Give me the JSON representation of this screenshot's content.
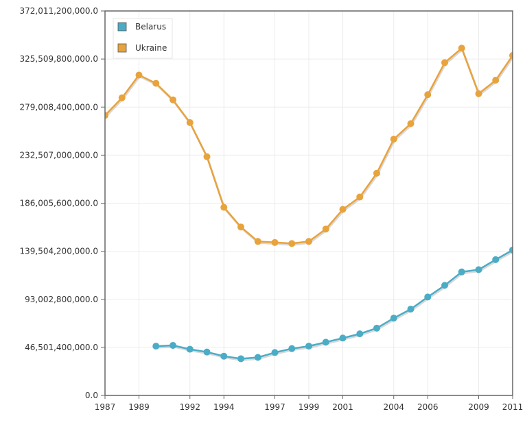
{
  "chart_data": {
    "type": "line",
    "title": "",
    "xlabel": "",
    "ylabel": "",
    "x": [
      1987,
      1988,
      1989,
      1990,
      1991,
      1992,
      1993,
      1994,
      1995,
      1996,
      1997,
      1998,
      1999,
      2000,
      2001,
      2002,
      2003,
      2004,
      2005,
      2006,
      2007,
      2008,
      2009,
      2010,
      2011
    ],
    "x_tick_labels": [
      "1987",
      "1989",
      "1992",
      "1994",
      "1997",
      "1999",
      "2001",
      "2004",
      "2006",
      "2009",
      "2011"
    ],
    "x_tick_values": [
      1987,
      1989,
      1992,
      1994,
      1997,
      1999,
      2001,
      2004,
      2006,
      2009,
      2011
    ],
    "y_tick_labels": [
      "0.0",
      "46,501,400,000.0",
      "93,002,800,000.0",
      "139,504,200,000.0",
      "186,005,600,000.0",
      "232,507,000,000.0",
      "279,008,400,000.0",
      "325,509,800,000.0",
      "372,011,200,000.0"
    ],
    "y_tick_values": [
      0,
      46501400000,
      93002800000,
      139504200000,
      186005600000,
      232507000000,
      279008400000,
      325509800000,
      372011200000
    ],
    "ylim": [
      0,
      372011200000
    ],
    "xlim": [
      1987,
      2011
    ],
    "grid": true,
    "legend_position": "top-left",
    "series": [
      {
        "name": "Belarus",
        "color": "#4BACC6",
        "values": [
          null,
          null,
          null,
          47700000000,
          48400000000,
          44700000000,
          42000000000,
          38000000000,
          35500000000,
          36800000000,
          41500000000,
          45300000000,
          47700000000,
          51500000000,
          55500000000,
          59600000000,
          65100000000,
          74800000000,
          83500000000,
          95200000000,
          106500000000,
          119500000000,
          121700000000,
          131400000000,
          140700000000
        ]
      },
      {
        "name": "Ukraine",
        "color": "#E8A33D",
        "values": [
          271000000000,
          288000000000,
          310000000000,
          302000000000,
          286000000000,
          264000000000,
          231000000000,
          182000000000,
          163000000000,
          149000000000,
          148000000000,
          147000000000,
          149000000000,
          161000000000,
          180000000000,
          192000000000,
          215000000000,
          248000000000,
          263000000000,
          291000000000,
          322000000000,
          336000000000,
          292000000000,
          305000000000,
          329000000000
        ]
      }
    ]
  }
}
